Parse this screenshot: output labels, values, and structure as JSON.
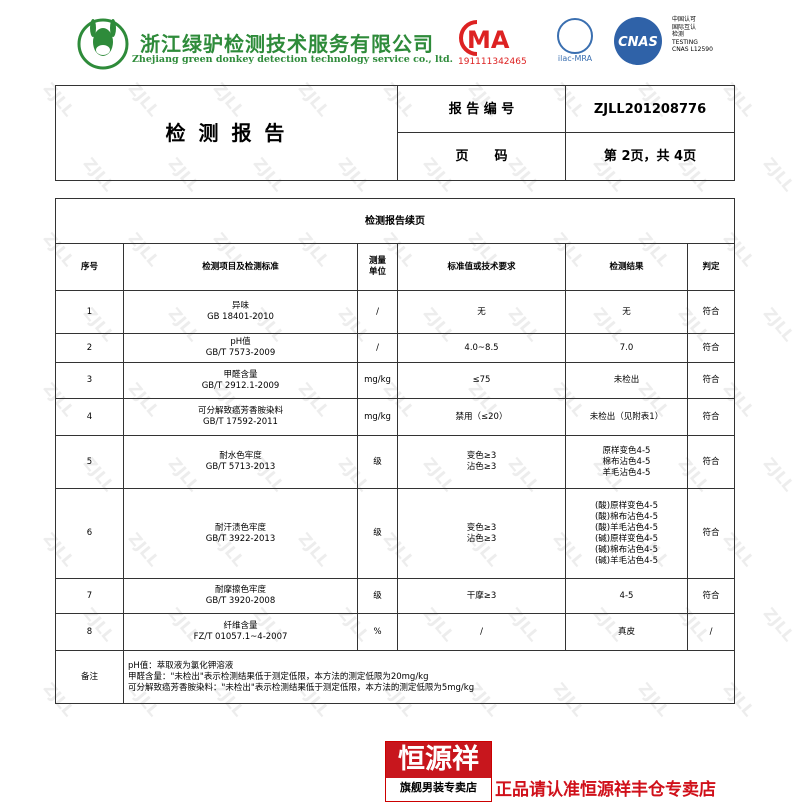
{
  "header": {
    "company_cn": "浙江绿驴检测技术服务有限公司",
    "company_en": "Zhejiang green donkey detection technology service co., ltd.",
    "cma_mark": "MA",
    "cma_code": "191111342465",
    "ilac": "ilac-MRA",
    "cnas": "CNAS",
    "cnas_info": [
      "中国认可",
      "国际互认",
      "检测",
      "TESTING",
      "CNAS L12590"
    ]
  },
  "report": {
    "title": "检 测 报 告",
    "number_label": "报 告 编 号",
    "number": "ZJLL201208776",
    "page_label": "页　　码",
    "page": "第 2页，共 4页"
  },
  "table": {
    "title": "检测报告续页",
    "columns": [
      [
        "序号"
      ],
      [
        "检测项目及检测标准"
      ],
      [
        "测量",
        "单位"
      ],
      [
        "标准值或技术要求"
      ],
      [
        "检测结果"
      ],
      [
        "判定"
      ]
    ],
    "rows": [
      {
        "no": "1",
        "item": [
          "异味",
          "GB 18401-2010"
        ],
        "unit": "/",
        "requirement": [
          "无"
        ],
        "result": [
          "无"
        ],
        "verdict": "符合"
      },
      {
        "no": "2",
        "item": [
          "pH值",
          "GB/T 7573-2009"
        ],
        "unit": "/",
        "requirement": [
          "4.0~8.5"
        ],
        "result": [
          "7.0"
        ],
        "verdict": "符合"
      },
      {
        "no": "3",
        "item": [
          "甲醛含量",
          "GB/T 2912.1-2009"
        ],
        "unit": "mg/kg",
        "requirement": [
          "≤75"
        ],
        "result": [
          "未检出"
        ],
        "verdict": "符合"
      },
      {
        "no": "4",
        "item": [
          "可分解致癌芳香胺染料",
          "GB/T 17592-2011"
        ],
        "unit": "mg/kg",
        "requirement": [
          "禁用（≤20）"
        ],
        "result": [
          "未检出（见附表1）"
        ],
        "verdict": "符合"
      },
      {
        "no": "5",
        "item": [
          "耐水色牢度",
          "GB/T 5713-2013"
        ],
        "unit": "级",
        "requirement": [
          "变色≥3",
          "沾色≥3"
        ],
        "result": [
          "原样变色4-5",
          "棉布沾色4-5",
          "羊毛沾色4-5"
        ],
        "verdict": "符合"
      },
      {
        "no": "6",
        "item": [
          "耐汗渍色牢度",
          "GB/T 3922-2013"
        ],
        "unit": "级",
        "requirement": [
          "变色≥3",
          "沾色≥3"
        ],
        "result": [
          "(酸)原样变色4-5",
          "(酸)棉布沾色4-5",
          "(酸)羊毛沾色4-5",
          "(碱)原样变色4-5",
          "(碱)棉布沾色4-5",
          "(碱)羊毛沾色4-5"
        ],
        "verdict": "符合"
      },
      {
        "no": "7",
        "item": [
          "耐摩擦色牢度",
          "GB/T 3920-2008"
        ],
        "unit": "级",
        "requirement": [
          "干摩≥3"
        ],
        "result": [
          "4-5"
        ],
        "verdict": "符合"
      },
      {
        "no": "8",
        "item": [
          "纤维含量",
          "FZ/T 01057.1~4-2007"
        ],
        "unit": "%",
        "requirement": [
          "/"
        ],
        "result": [
          "真皮"
        ],
        "verdict": "/"
      }
    ],
    "notes": {
      "label": "备注",
      "lines": [
        "pH值：萃取液为氯化钾溶液",
        "甲醛含量：\"未检出\"表示检测结果低于测定低限，本方法的测定低限为20mg/kg",
        "可分解致癌芳香胺染料：\"未检出\"表示检测结果低于测定低限，本方法的测定低限为5mg/kg"
      ]
    }
  },
  "footer": {
    "brand": "恒源祥",
    "store": "旗舰男装专卖店",
    "slogan": "正品请认准恒源祥丰仓专卖店"
  },
  "watermark": "ZJLL"
}
